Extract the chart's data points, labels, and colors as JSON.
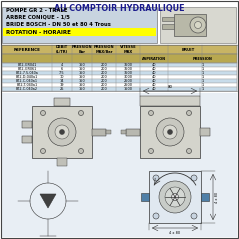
{
  "title": "AU COMPTOIR HYDRAULIQUE",
  "header_lines": [
    "POMPE GR 2 - TRALE",
    "ARBRE CONIQUE - 1/5",
    "BRIDE BOSCH - DN 50 et 80 4 Trous",
    "ROTATION - HORAIRE"
  ],
  "table_col_labels": [
    "REFERENCE",
    "DEBIT\n(L/TR)",
    "PRESSION\nBar",
    "PRESSION\nMAX/Bar",
    "VITESSE\nMAX",
    "BRUIT"
  ],
  "bruit_sub": [
    "ASPIRATION",
    "PRESSION"
  ],
  "table_data": [
    [
      "BT2-GR041",
      "4",
      "150",
      "200",
      "3500",
      "40",
      "1"
    ],
    [
      "BT2-GR061",
      "6",
      "150",
      "200",
      "3500",
      "40",
      "1"
    ],
    [
      "BT2-7.5-040a",
      "7.5",
      "150",
      "200",
      "3500",
      "40",
      "1"
    ],
    [
      "BT2-D-040a1",
      "10",
      "150",
      "200",
      "3000",
      "40",
      "1"
    ],
    [
      "BT2-C-040a1",
      "14",
      "150",
      "200",
      "2500",
      "40",
      "1"
    ],
    [
      "BT2-T-040a1",
      "19",
      "150",
      "200",
      "2500",
      "40",
      "1"
    ],
    [
      "BT2-C-040a2",
      "25",
      "150",
      "200",
      "1500",
      "40",
      "1"
    ]
  ],
  "bg_color": "#ffffff",
  "title_color": "#1a1a8c",
  "header_bg": "#c8d4e0",
  "yellow_bg": "#ffff00",
  "table_header_bg1": "#c8b464",
  "table_header_bg2": "#b8a850",
  "table_alt_bg": "#c8dcea",
  "table_white_bg": "#ffffff",
  "draw_bg": "#e8eef4",
  "border_color": "#555555",
  "line_color": "#333333"
}
